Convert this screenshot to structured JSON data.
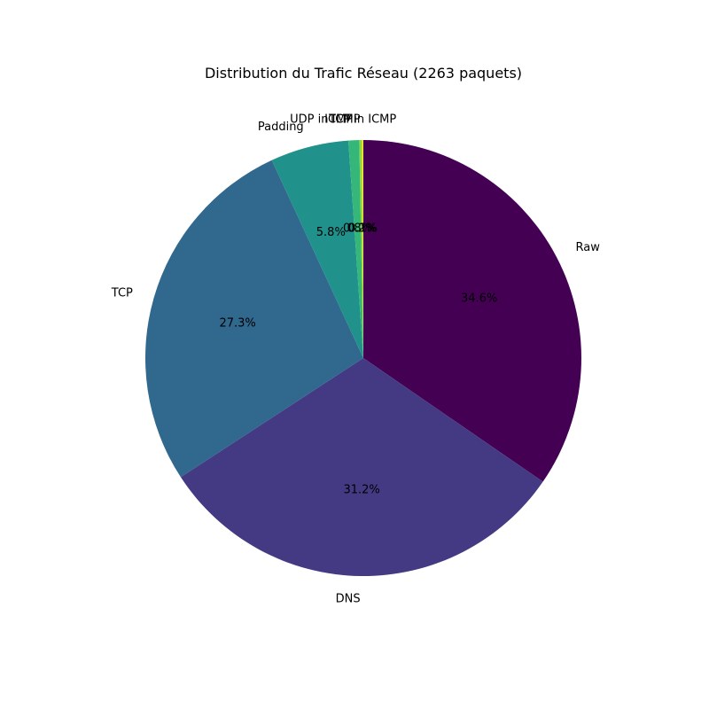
{
  "chart_data": {
    "type": "pie",
    "title": "Distribution du Trafic Réseau (2263 paquets)",
    "start_angle_deg": 90,
    "direction": "clockwise",
    "slices": [
      {
        "label": "Raw",
        "value": 34.6,
        "pct_text": "34.6%",
        "color": "#440154"
      },
      {
        "label": "DNS",
        "value": 31.2,
        "pct_text": "31.2%",
        "color": "#443983"
      },
      {
        "label": "TCP",
        "value": 27.3,
        "pct_text": "27.3%",
        "color": "#31688e"
      },
      {
        "label": "Padding",
        "value": 5.8,
        "pct_text": "5.8%",
        "color": "#21918c"
      },
      {
        "label": "ICMP",
        "value": 0.8,
        "pct_text": "0.8%",
        "color": "#35b779"
      },
      {
        "label": "UDP in ICMP",
        "value": 0.2,
        "pct_text": "0.2%",
        "color": "#90d743"
      },
      {
        "label": "TCP in ICMP",
        "value": 0.1,
        "pct_text": "0.1%",
        "color": "#fde725"
      }
    ]
  }
}
